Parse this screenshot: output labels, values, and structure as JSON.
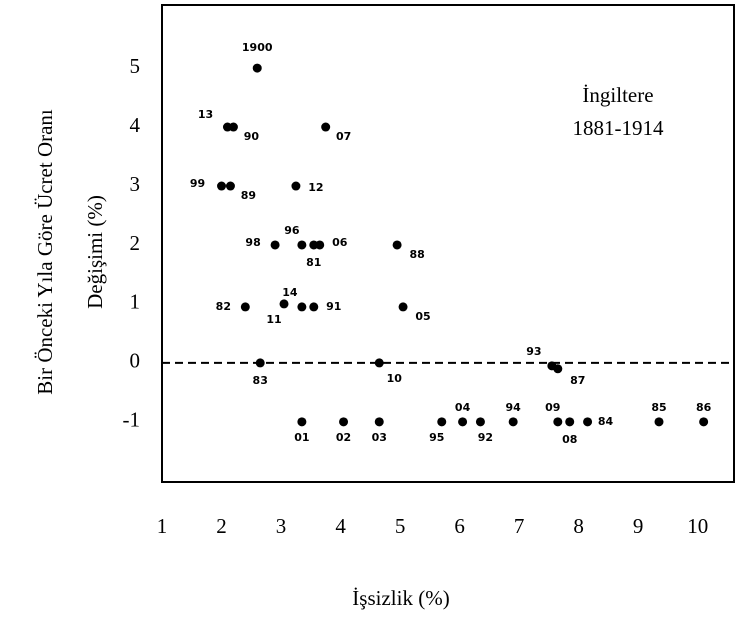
{
  "chart_data": {
    "type": "scatter",
    "x_label": "İşsizlik (%)",
    "y_label": [
      "Bir Önceki Yıla Göre Ücret Oranı",
      "Değişimi (%)"
    ],
    "annotation": [
      "İngiltere",
      "1881-1914"
    ],
    "reference_line": 0,
    "xlim": [
      1.0,
      10.61
    ],
    "ylim": [
      -2.02,
      6.07
    ],
    "xticks": [
      1,
      2,
      3,
      4,
      5,
      6,
      7,
      8,
      9,
      10
    ],
    "yticks": [
      -1,
      0,
      1,
      2,
      3,
      4,
      5
    ],
    "series": [
      {
        "color": "#000000",
        "labels": [
          "1900",
          "13",
          "90",
          "07",
          "99",
          "89",
          "12",
          "98",
          "96",
          "81",
          "06",
          "88",
          "82",
          "11",
          "14",
          "91",
          "05",
          "83",
          "10",
          "93",
          "87",
          "01",
          "02",
          "03",
          "95",
          "04",
          "92",
          "94",
          "09",
          "08",
          "84",
          "85",
          "86"
        ],
        "x": [
          2.6,
          2.1,
          2.2,
          3.75,
          2.0,
          2.15,
          3.25,
          2.9,
          3.35,
          3.55,
          3.65,
          4.95,
          2.4,
          3.05,
          3.35,
          3.55,
          5.05,
          2.65,
          4.65,
          7.55,
          7.65,
          3.35,
          4.05,
          4.65,
          5.7,
          6.05,
          6.35,
          6.9,
          7.65,
          7.85,
          8.15,
          9.35,
          10.1
        ],
        "values": [
          5,
          4,
          4,
          4,
          3,
          3,
          3,
          2,
          2,
          2,
          2,
          2,
          0.95,
          1,
          0.95,
          0.95,
          0.95,
          0,
          0,
          -0.05,
          -0.1,
          -1,
          -1,
          -1,
          -1,
          -1,
          -1,
          -1,
          -1,
          -1,
          -1,
          -1,
          -1
        ]
      }
    ]
  }
}
